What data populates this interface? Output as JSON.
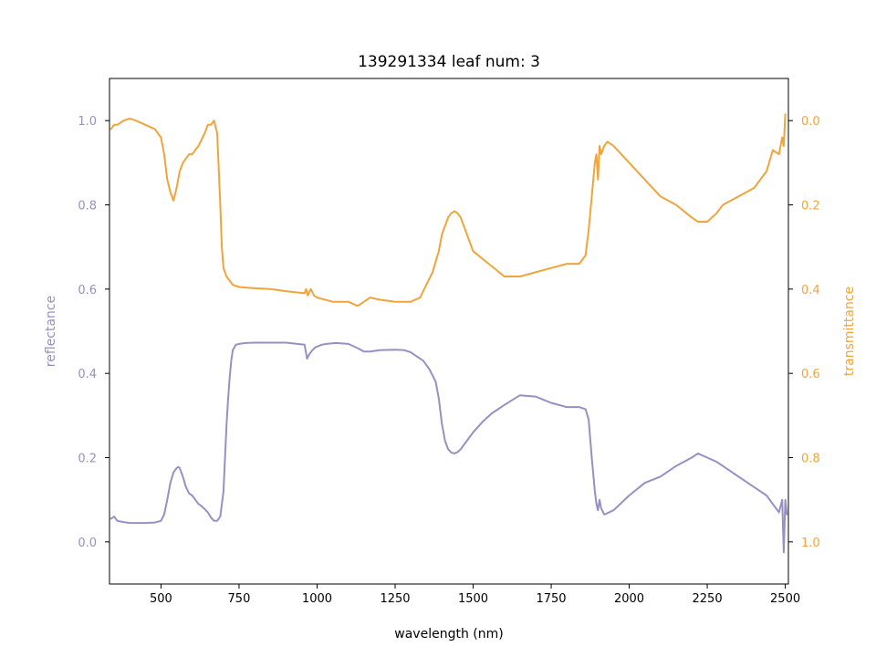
{
  "chart_data": {
    "type": "line",
    "title": "139291334 leaf num: 3",
    "xlabel": "wavelength (nm)",
    "ylabel": "reflectance",
    "y2label": "transmittance",
    "xlim": [
      335,
      2510
    ],
    "ylim": [
      -0.1,
      1.1
    ],
    "y2lim": [
      1.1,
      -0.1
    ],
    "y2_inverted": true,
    "grid": false,
    "x_ticks": [
      500,
      750,
      1000,
      1250,
      1500,
      1750,
      2000,
      2250,
      2500
    ],
    "y_ticks": [
      0.0,
      0.2,
      0.4,
      0.6,
      0.8,
      1.0
    ],
    "y2_ticks": [
      0.0,
      0.2,
      0.4,
      0.6,
      0.8,
      1.0
    ],
    "colors": {
      "reflectance": "#9690c3",
      "transmittance": "#f0a43c",
      "axis": "#000000"
    },
    "series": [
      {
        "axis": "left",
        "color": "#9690c3",
        "x": [
          340,
          350,
          360,
          380,
          400,
          450,
          480,
          500,
          510,
          520,
          530,
          540,
          550,
          555,
          560,
          570,
          580,
          590,
          600,
          610,
          620,
          630,
          640,
          650,
          660,
          670,
          680,
          690,
          700,
          705,
          710,
          715,
          720,
          725,
          730,
          740,
          750,
          770,
          800,
          900,
          960,
          968,
          975,
          985,
          995,
          1005,
          1015,
          1030,
          1060,
          1100,
          1130,
          1150,
          1170,
          1200,
          1250,
          1280,
          1300,
          1320,
          1340,
          1360,
          1380,
          1390,
          1400,
          1410,
          1420,
          1430,
          1440,
          1450,
          1460,
          1480,
          1500,
          1530,
          1560,
          1600,
          1650,
          1700,
          1750,
          1800,
          1840,
          1860,
          1870,
          1880,
          1890,
          1895,
          1900,
          1905,
          1910,
          1920,
          1930,
          1950,
          2000,
          2050,
          2100,
          2150,
          2200,
          2220,
          2250,
          2280,
          2300,
          2350,
          2400,
          2440,
          2460,
          2480,
          2490,
          2495,
          2500,
          2505
        ],
        "y": [
          0.055,
          0.06,
          0.05,
          0.047,
          0.045,
          0.045,
          0.046,
          0.05,
          0.065,
          0.1,
          0.14,
          0.165,
          0.175,
          0.178,
          0.175,
          0.155,
          0.13,
          0.115,
          0.11,
          0.1,
          0.09,
          0.085,
          0.078,
          0.07,
          0.058,
          0.05,
          0.05,
          0.06,
          0.12,
          0.2,
          0.28,
          0.34,
          0.39,
          0.43,
          0.455,
          0.468,
          0.47,
          0.472,
          0.473,
          0.473,
          0.468,
          0.435,
          0.445,
          0.455,
          0.462,
          0.465,
          0.468,
          0.47,
          0.472,
          0.47,
          0.46,
          0.452,
          0.452,
          0.455,
          0.456,
          0.455,
          0.45,
          0.44,
          0.43,
          0.41,
          0.38,
          0.34,
          0.28,
          0.24,
          0.22,
          0.212,
          0.21,
          0.213,
          0.22,
          0.24,
          0.26,
          0.285,
          0.305,
          0.325,
          0.348,
          0.345,
          0.33,
          0.32,
          0.32,
          0.315,
          0.29,
          0.2,
          0.12,
          0.09,
          0.075,
          0.1,
          0.08,
          0.065,
          0.068,
          0.075,
          0.11,
          0.14,
          0.155,
          0.18,
          0.2,
          0.21,
          0.2,
          0.19,
          0.18,
          0.155,
          0.13,
          0.11,
          0.09,
          0.07,
          0.1,
          -0.025,
          0.1,
          0.065
        ]
      },
      {
        "axis": "right",
        "color": "#f0a43c",
        "x": [
          340,
          350,
          360,
          380,
          400,
          420,
          450,
          480,
          500,
          510,
          520,
          530,
          540,
          550,
          560,
          570,
          580,
          590,
          600,
          620,
          640,
          650,
          660,
          670,
          680,
          690,
          695,
          700,
          705,
          710,
          715,
          720,
          730,
          750,
          780,
          800,
          850,
          900,
          960,
          965,
          970,
          980,
          990,
          1000,
          1050,
          1100,
          1130,
          1150,
          1170,
          1200,
          1250,
          1300,
          1330,
          1350,
          1370,
          1390,
          1400,
          1410,
          1420,
          1430,
          1440,
          1450,
          1460,
          1480,
          1500,
          1550,
          1600,
          1650,
          1700,
          1750,
          1800,
          1840,
          1860,
          1870,
          1880,
          1890,
          1895,
          1900,
          1905,
          1910,
          1920,
          1930,
          1950,
          2000,
          2050,
          2100,
          2150,
          2200,
          2220,
          2250,
          2280,
          2300,
          2350,
          2400,
          2440,
          2460,
          2480,
          2490,
          2495,
          2500
        ],
        "y": [
          0.02,
          0.01,
          0.01,
          0.0,
          -0.005,
          0.0,
          0.01,
          0.02,
          0.04,
          0.08,
          0.14,
          0.17,
          0.19,
          0.16,
          0.12,
          0.1,
          0.09,
          0.08,
          0.08,
          0.06,
          0.03,
          0.01,
          0.01,
          0.0,
          0.03,
          0.2,
          0.3,
          0.35,
          0.36,
          0.37,
          0.375,
          0.38,
          0.39,
          0.395,
          0.397,
          0.398,
          0.4,
          0.405,
          0.41,
          0.4,
          0.415,
          0.4,
          0.415,
          0.42,
          0.43,
          0.43,
          0.44,
          0.43,
          0.42,
          0.425,
          0.43,
          0.43,
          0.42,
          0.39,
          0.36,
          0.31,
          0.27,
          0.25,
          0.23,
          0.22,
          0.215,
          0.22,
          0.23,
          0.27,
          0.31,
          0.34,
          0.37,
          0.37,
          0.36,
          0.35,
          0.34,
          0.34,
          0.32,
          0.26,
          0.18,
          0.1,
          0.08,
          0.14,
          0.06,
          0.08,
          0.06,
          0.05,
          0.06,
          0.1,
          0.14,
          0.18,
          0.2,
          0.23,
          0.24,
          0.24,
          0.22,
          0.2,
          0.18,
          0.16,
          0.12,
          0.07,
          0.08,
          0.04,
          0.06,
          -0.015
        ]
      }
    ]
  }
}
